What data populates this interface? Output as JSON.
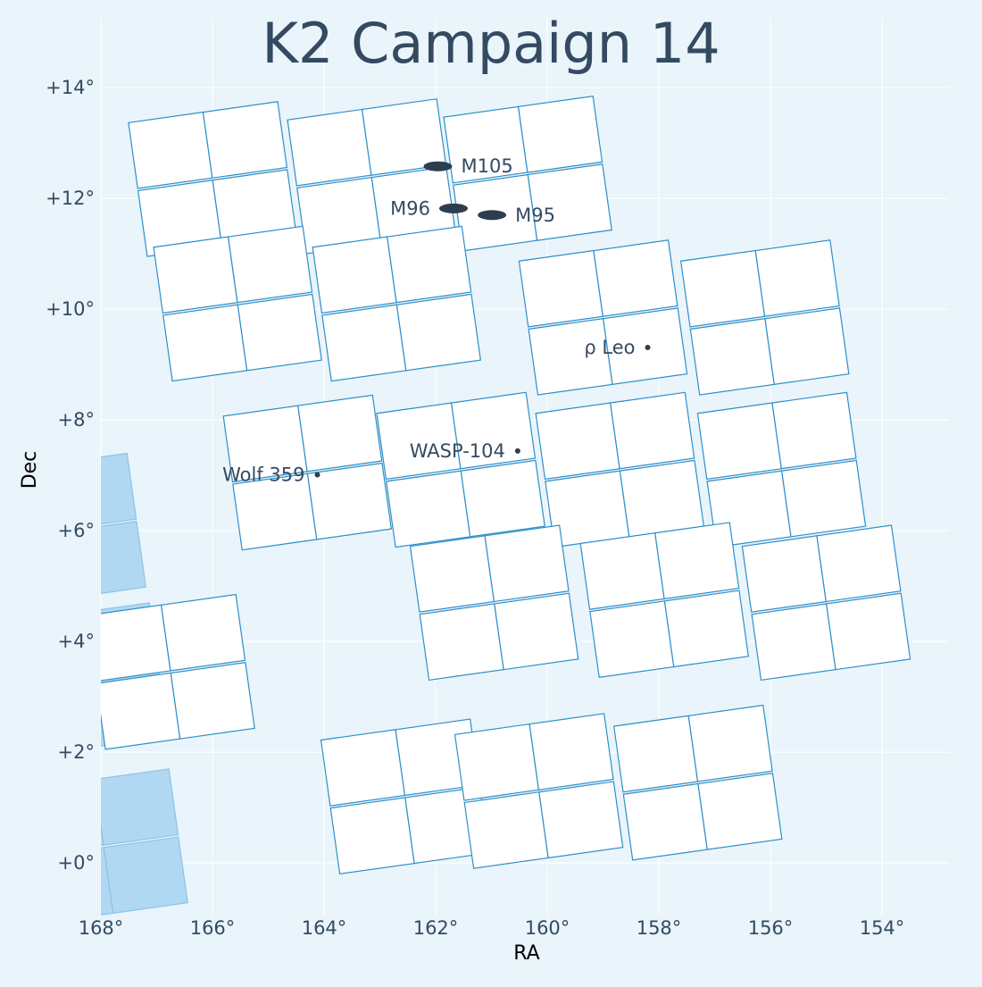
{
  "chart_data": {
    "type": "scatter",
    "title": "K2 Campaign 14",
    "xlabel": "RA",
    "ylabel": "Dec",
    "xlim": [
      168.0,
      152.8
    ],
    "ylim": [
      -0.95,
      15.1
    ],
    "x_ticks": [
      168,
      166,
      164,
      162,
      160,
      158,
      156,
      154
    ],
    "x_tick_labels": [
      "168°",
      "166°",
      "164°",
      "162°",
      "160°",
      "158°",
      "156°",
      "154°"
    ],
    "y_ticks": [
      14,
      12,
      10,
      8,
      6,
      4,
      2,
      0
    ],
    "y_tick_labels": [
      "+14°",
      "+12°",
      "+10°",
      "+8°",
      "+6°",
      "+4°",
      "+2°",
      "+0°"
    ],
    "grid": true,
    "colors": {
      "background": "#e9f4fb",
      "channel_fill": "#ffffff",
      "channel_edge": "#2e8fc9",
      "neighbor_fill": "#a6d2f0",
      "neighbor_edge": "#8cc3ea",
      "object": "#2c3e50",
      "text": "#344a61"
    },
    "objects": [
      {
        "name": "M105",
        "ra": 161.96,
        "dec": 12.58,
        "kind": "galaxy",
        "label_side": "right"
      },
      {
        "name": "M96",
        "ra": 161.68,
        "dec": 11.82,
        "kind": "galaxy",
        "label_side": "left"
      },
      {
        "name": "M95",
        "ra": 160.99,
        "dec": 11.7,
        "kind": "galaxy",
        "label_side": "right"
      },
      {
        "name": "ρ Leo",
        "ra": 158.2,
        "dec": 9.31,
        "kind": "star",
        "label_side": "left"
      },
      {
        "name": "WASP-104",
        "ra": 160.53,
        "dec": 7.44,
        "kind": "star",
        "label_side": "left"
      },
      {
        "name": "Wolf 359",
        "ra": 164.12,
        "dec": 7.01,
        "kind": "star",
        "label_side": "left"
      }
    ],
    "modules": [
      {
        "center": [
          166.0,
          12.35
        ],
        "rot": -8
      },
      {
        "center": [
          163.15,
          12.4
        ],
        "rot": -8
      },
      {
        "center": [
          160.35,
          12.45
        ],
        "rot": -8
      },
      {
        "center": [
          165.55,
          10.1
        ],
        "rot": -8
      },
      {
        "center": [
          162.7,
          10.1
        ],
        "rot": -8
      },
      {
        "center": [
          159.0,
          9.85
        ],
        "rot": -8
      },
      {
        "center": [
          156.1,
          9.85
        ],
        "rot": -8
      },
      {
        "center": [
          164.3,
          7.05
        ],
        "rot": -8
      },
      {
        "center": [
          161.55,
          7.1
        ],
        "rot": -8
      },
      {
        "center": [
          158.7,
          7.1
        ],
        "rot": -8
      },
      {
        "center": [
          155.8,
          7.1
        ],
        "rot": -8
      },
      {
        "center": [
          160.95,
          4.7
        ],
        "rot": -8
      },
      {
        "center": [
          157.9,
          4.75
        ],
        "rot": -8
      },
      {
        "center": [
          155.0,
          4.7
        ],
        "rot": -8
      },
      {
        "center": [
          166.75,
          3.45
        ],
        "rot": -8
      },
      {
        "center": [
          162.55,
          1.2
        ],
        "rot": -8
      },
      {
        "center": [
          160.15,
          1.3
        ],
        "rot": -8
      },
      {
        "center": [
          157.3,
          1.45
        ],
        "rot": -8
      }
    ],
    "neighbor_modules": [
      {
        "center": [
          168.7,
          6.0
        ],
        "rot": -8
      },
      {
        "center": [
          168.3,
          3.3
        ],
        "rot": -8
      },
      {
        "center": [
          167.95,
          0.3
        ],
        "rot": -8
      }
    ]
  }
}
